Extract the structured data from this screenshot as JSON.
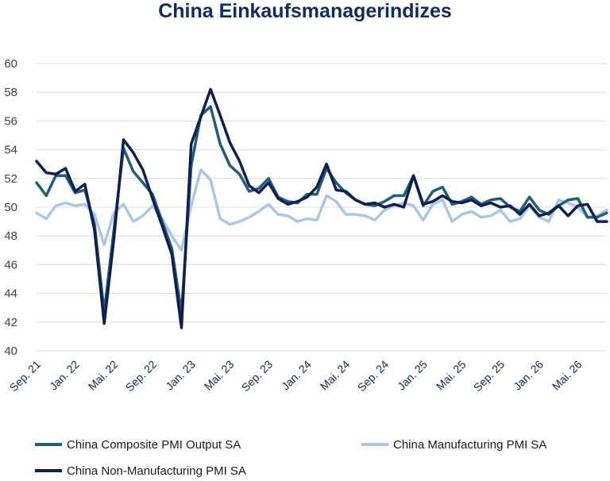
{
  "chart_data": {
    "type": "line",
    "title": "China Einkaufsmanagerindizes",
    "xlabel": "",
    "ylabel": "",
    "ylim": [
      40,
      60
    ],
    "yticks": [
      40,
      42,
      44,
      46,
      48,
      50,
      52,
      54,
      56,
      58,
      60
    ],
    "grid": "horizontal",
    "legend_position": "bottom",
    "x_tick_labels": [
      "Sep. 21",
      "Jan. 22",
      "Mai. 22",
      "Sep. 22",
      "Jan. 23",
      "Mai. 23",
      "Sep. 23",
      "Jan. 24",
      "Mai. 24",
      "Sep. 24",
      "Jan. 25",
      "Mai. 25",
      "Sep. 25",
      "Jan. 26",
      "Mai. 26"
    ],
    "x": [
      "Sep. 21",
      "Okt. 21",
      "Nov. 21",
      "Dez. 21",
      "Jan. 22",
      "Feb. 22",
      "Mrz. 22",
      "Apr. 22",
      "Mai. 22",
      "Jun. 22",
      "Jul. 22",
      "Aug. 22",
      "Sep. 22",
      "Okt. 22",
      "Nov. 22",
      "Dez. 22",
      "Jan. 23",
      "Feb. 23",
      "Mrz. 23",
      "Apr. 23",
      "Mai. 23",
      "Jun. 23",
      "Jul. 23",
      "Aug. 23",
      "Sep. 23",
      "Okt. 23",
      "Nov. 23",
      "Dez. 23",
      "Jan. 24",
      "Feb. 24",
      "Mrz. 24",
      "Apr. 24",
      "Mai. 24",
      "Jun. 24",
      "Jul. 24",
      "Aug. 24",
      "Sep. 24",
      "Okt. 24",
      "Nov. 24",
      "Dez. 24",
      "Jan. 25",
      "Feb. 25",
      "Mrz. 25",
      "Apr. 25",
      "Mai. 25",
      "Jun. 25",
      "Jul. 25",
      "Aug. 25",
      "Sep. 25",
      "Okt. 25",
      "Nov. 25",
      "Dez. 25",
      "Jan. 26",
      "Feb. 26",
      "Mrz. 26",
      "Apr. 26",
      "Mai. 26",
      "Jun. 26",
      "Jul. 26",
      "Aug. 26"
    ],
    "series": [
      {
        "name": "China Composite PMI Output SA",
        "color": "#1f5f78",
        "values": [
          51.7,
          50.8,
          52.2,
          52.2,
          51.0,
          51.2,
          48.8,
          42.7,
          48.4,
          54.1,
          52.5,
          51.7,
          50.9,
          49.0,
          47.1,
          42.6,
          52.9,
          56.4,
          57.0,
          54.4,
          52.9,
          52.3,
          51.1,
          51.3,
          52.0,
          50.7,
          50.4,
          50.3,
          50.9,
          50.9,
          52.7,
          51.7,
          51.0,
          50.5,
          50.2,
          50.1,
          50.4,
          50.8,
          50.8,
          52.2,
          50.1,
          51.1,
          51.4,
          50.2,
          50.4,
          50.7,
          50.2,
          50.5,
          50.6,
          50.0,
          49.7,
          50.7,
          49.8,
          49.5,
          50.1,
          50.5,
          50.6,
          49.3,
          49.3,
          49.6
        ]
      },
      {
        "name": "China Manufacturing PMI SA",
        "color": "#a9c8e8",
        "values": [
          49.6,
          49.2,
          50.1,
          50.3,
          50.1,
          50.2,
          49.5,
          47.4,
          49.6,
          50.2,
          49.0,
          49.4,
          50.1,
          49.2,
          48.0,
          47.0,
          50.1,
          52.6,
          51.9,
          49.2,
          48.8,
          49.0,
          49.3,
          49.7,
          50.2,
          49.5,
          49.4,
          49.0,
          49.2,
          49.1,
          50.8,
          50.4,
          49.5,
          49.5,
          49.4,
          49.1,
          49.8,
          50.1,
          50.3,
          50.1,
          49.1,
          50.2,
          50.5,
          49.0,
          49.5,
          49.7,
          49.3,
          49.4,
          49.8,
          49.0,
          49.2,
          50.1,
          49.3,
          49.0,
          50.5,
          50.3,
          50.0,
          49.3,
          49.4,
          49.8
        ]
      },
      {
        "name": "China Non-Manufacturing PMI SA",
        "color": "#0f1f56",
        "values": [
          53.2,
          52.4,
          52.3,
          52.7,
          51.1,
          51.6,
          48.4,
          41.9,
          47.8,
          54.7,
          53.8,
          52.6,
          50.6,
          48.7,
          46.7,
          41.6,
          54.4,
          56.3,
          58.2,
          56.4,
          54.5,
          53.2,
          51.5,
          51.0,
          51.7,
          50.6,
          50.2,
          50.4,
          50.7,
          51.4,
          53.0,
          51.2,
          51.1,
          50.5,
          50.2,
          50.3,
          50.0,
          50.2,
          50.0,
          52.2,
          50.2,
          50.4,
          50.8,
          50.4,
          50.3,
          50.5,
          50.1,
          50.3,
          50.0,
          50.1,
          49.5,
          50.2,
          49.4,
          49.6,
          50.1,
          49.4,
          50.1,
          50.2,
          49.0,
          49.0
        ]
      }
    ]
  }
}
